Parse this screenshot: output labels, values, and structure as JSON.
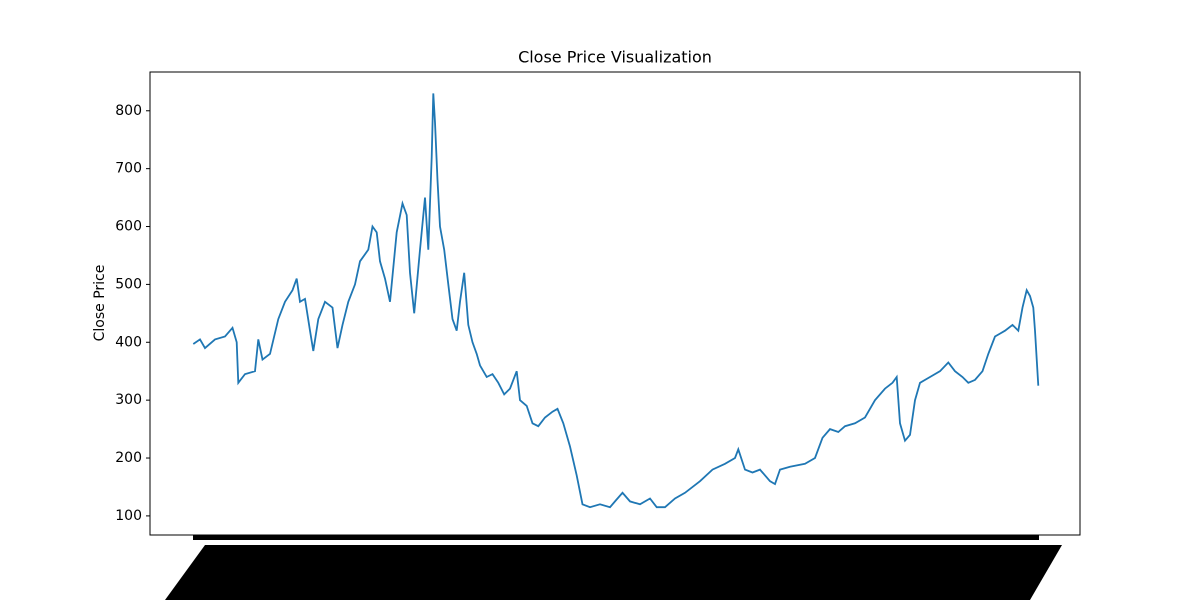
{
  "chart_data": {
    "type": "line",
    "title": "Close Price Visualization",
    "y_label": "Close Price",
    "x": [
      0,
      8,
      14,
      26,
      38,
      47,
      52,
      54,
      62,
      74,
      78,
      83,
      92,
      102,
      110,
      119,
      124,
      128,
      134,
      140,
      144,
      150,
      158,
      167,
      173,
      179,
      186,
      194,
      200,
      210,
      215,
      220,
      224,
      230,
      236,
      244,
      251,
      256,
      260,
      265,
      272,
      278,
      282,
      286,
      288,
      290,
      293,
      296,
      301,
      306,
      311,
      316,
      320,
      325,
      330,
      335,
      340,
      344,
      352,
      359,
      366,
      373,
      380,
      388,
      392,
      400,
      407,
      414,
      422,
      431,
      437,
      444,
      452,
      460,
      467,
      476,
      488,
      500,
      506,
      515,
      524,
      536,
      548,
      556,
      566,
      578,
      590,
      608,
      623,
      638,
      650,
      654,
      662,
      671,
      680,
      692,
      698,
      704,
      716,
      734,
      746,
      755,
      764,
      774,
      782,
      794,
      806,
      818,
      830,
      839,
      844,
      848,
      854,
      860,
      866,
      872,
      884,
      896,
      906,
      914,
      923,
      930,
      938,
      947,
      954,
      962,
      968,
      974,
      983,
      990,
      995,
      1000,
      1004,
      1008,
      1010,
      1014
    ],
    "series": [
      {
        "name": "Close Price",
        "color": "#1f77b4",
        "values": [
          397,
          405,
          390,
          405,
          410,
          425,
          400,
          330,
          345,
          350,
          405,
          370,
          380,
          440,
          470,
          490,
          510,
          470,
          475,
          420,
          385,
          440,
          470,
          460,
          390,
          430,
          470,
          500,
          540,
          560,
          600,
          590,
          540,
          510,
          470,
          590,
          640,
          620,
          520,
          450,
          560,
          650,
          560,
          720,
          830,
          780,
          680,
          600,
          560,
          500,
          440,
          420,
          470,
          520,
          430,
          400,
          380,
          360,
          340,
          345,
          330,
          310,
          320,
          350,
          300,
          290,
          260,
          255,
          270,
          280,
          285,
          260,
          220,
          170,
          120,
          115,
          120,
          115,
          125,
          140,
          125,
          120,
          130,
          115,
          115,
          130,
          140,
          160,
          180,
          190,
          200,
          215,
          180,
          175,
          180,
          160,
          155,
          180,
          185,
          190,
          200,
          235,
          250,
          245,
          255,
          260,
          270,
          300,
          320,
          330,
          340,
          260,
          230,
          240,
          300,
          330,
          340,
          350,
          365,
          350,
          340,
          330,
          335,
          350,
          380,
          410,
          415,
          420,
          430,
          420,
          460,
          490,
          480,
          460,
          420,
          325
        ]
      }
    ],
    "xlim": [
      -52,
      1064
    ],
    "ylim": [
      67,
      867
    ],
    "yticks": [
      100,
      200,
      300,
      400,
      500,
      600,
      700,
      800
    ]
  }
}
